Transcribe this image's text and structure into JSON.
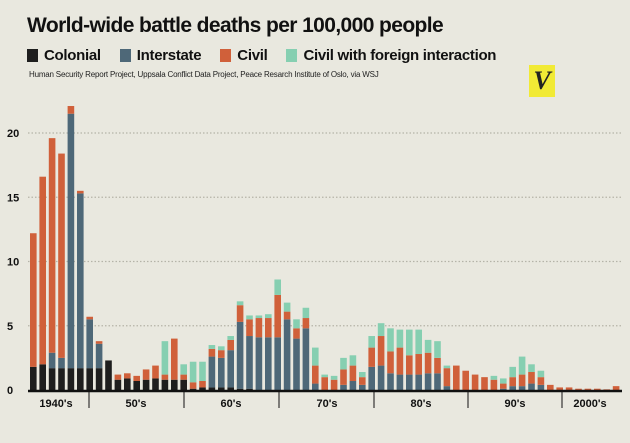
{
  "chart_data": {
    "type": "bar",
    "stacked": true,
    "title": "World-wide battle deaths per 100,000 people",
    "source": "Human Security Report Project, Uppsala Conflict Data Project, Peace Resarch Institute of Oslo, via WSJ",
    "xlabel": "",
    "ylabel": "",
    "ylim": [
      0,
      22
    ],
    "yticks": [
      0,
      5,
      10,
      15,
      20
    ],
    "grid": true,
    "legend_position": "top",
    "decade_labels": [
      "1940's",
      "50's",
      "60's",
      "70's",
      "80's",
      "90's",
      "2000's"
    ],
    "series": [
      {
        "name": "Colonial",
        "color": "#1e1e1e",
        "values": [
          1.8,
          2.0,
          1.7,
          1.7,
          1.7,
          1.7,
          1.7,
          1.7,
          2.3,
          0.8,
          0.9,
          0.7,
          0.8,
          0.9,
          0.8,
          0.8,
          0.8,
          0.1,
          0.2,
          0.2,
          0.2,
          0.2,
          0.1,
          0.1,
          0,
          0,
          0,
          0,
          0,
          0,
          0,
          0,
          0,
          0,
          0,
          0,
          0,
          0,
          0,
          0,
          0,
          0,
          0,
          0,
          0,
          0,
          0,
          0,
          0,
          0,
          0,
          0,
          0,
          0,
          0,
          0,
          0,
          0,
          0,
          0,
          0,
          0,
          0
        ]
      },
      {
        "name": "Interstate",
        "color": "#4e6878",
        "values": [
          0,
          0,
          1.2,
          0.8,
          19.8,
          13.6,
          3.8,
          1.9,
          0,
          0,
          0,
          0,
          0,
          0,
          0,
          0,
          0,
          0,
          0,
          2.4,
          2.3,
          2.9,
          5.2,
          4.1,
          4.1,
          4.1,
          4.1,
          5.5,
          4.0,
          4.8,
          0.5,
          0,
          0,
          0.4,
          0.7,
          0.4,
          1.8,
          1.9,
          1.3,
          1.2,
          1.2,
          1.2,
          1.3,
          1.3,
          0.3,
          0,
          0,
          0,
          0,
          0,
          0.1,
          0.3,
          0.3,
          0.5,
          0.4,
          0,
          0,
          0,
          0,
          0,
          0,
          0,
          0
        ]
      },
      {
        "name": "Civil",
        "color": "#d0603a",
        "values": [
          10.4,
          14.6,
          16.7,
          15.9,
          0.6,
          0.2,
          0.2,
          0.2,
          0,
          0.4,
          0.4,
          0.4,
          0.8,
          1.0,
          0.4,
          3.2,
          0.4,
          0.5,
          0.5,
          0.6,
          0.6,
          0.8,
          1.3,
          1.3,
          1.5,
          1.5,
          3.3,
          0.6,
          0.8,
          0.8,
          1.4,
          1.0,
          0.8,
          1.2,
          1.2,
          0.6,
          1.5,
          2.3,
          1.7,
          2.1,
          1.5,
          1.6,
          1.6,
          1.2,
          1.4,
          1.9,
          1.5,
          1.2,
          1.0,
          0.8,
          0.4,
          0.7,
          0.9,
          0.9,
          0.6,
          0.4,
          0.2,
          0.2,
          0.1,
          0.1,
          0.1,
          0.05,
          0.3
        ]
      },
      {
        "name": "Civil with foreign interaction",
        "color": "#86cfb1",
        "values": [
          0,
          0,
          0,
          0,
          0,
          0,
          0,
          0,
          0,
          0,
          0,
          0,
          0,
          0,
          2.6,
          0,
          0.8,
          1.6,
          1.5,
          0.3,
          0.3,
          0.3,
          0.3,
          0.3,
          0.2,
          0.3,
          1.2,
          0.7,
          0.7,
          0.8,
          1.4,
          0.2,
          0.3,
          0.9,
          0.8,
          0.4,
          0.9,
          1.0,
          1.8,
          1.4,
          2.0,
          1.9,
          1.0,
          1.3,
          0.2,
          0,
          0,
          0,
          0,
          0.3,
          0.4,
          0.8,
          1.4,
          0.6,
          0.5,
          0,
          0,
          0,
          0,
          0,
          0,
          0,
          0
        ]
      }
    ]
  },
  "logo": {
    "text": "V",
    "color": "#f1ea35"
  }
}
